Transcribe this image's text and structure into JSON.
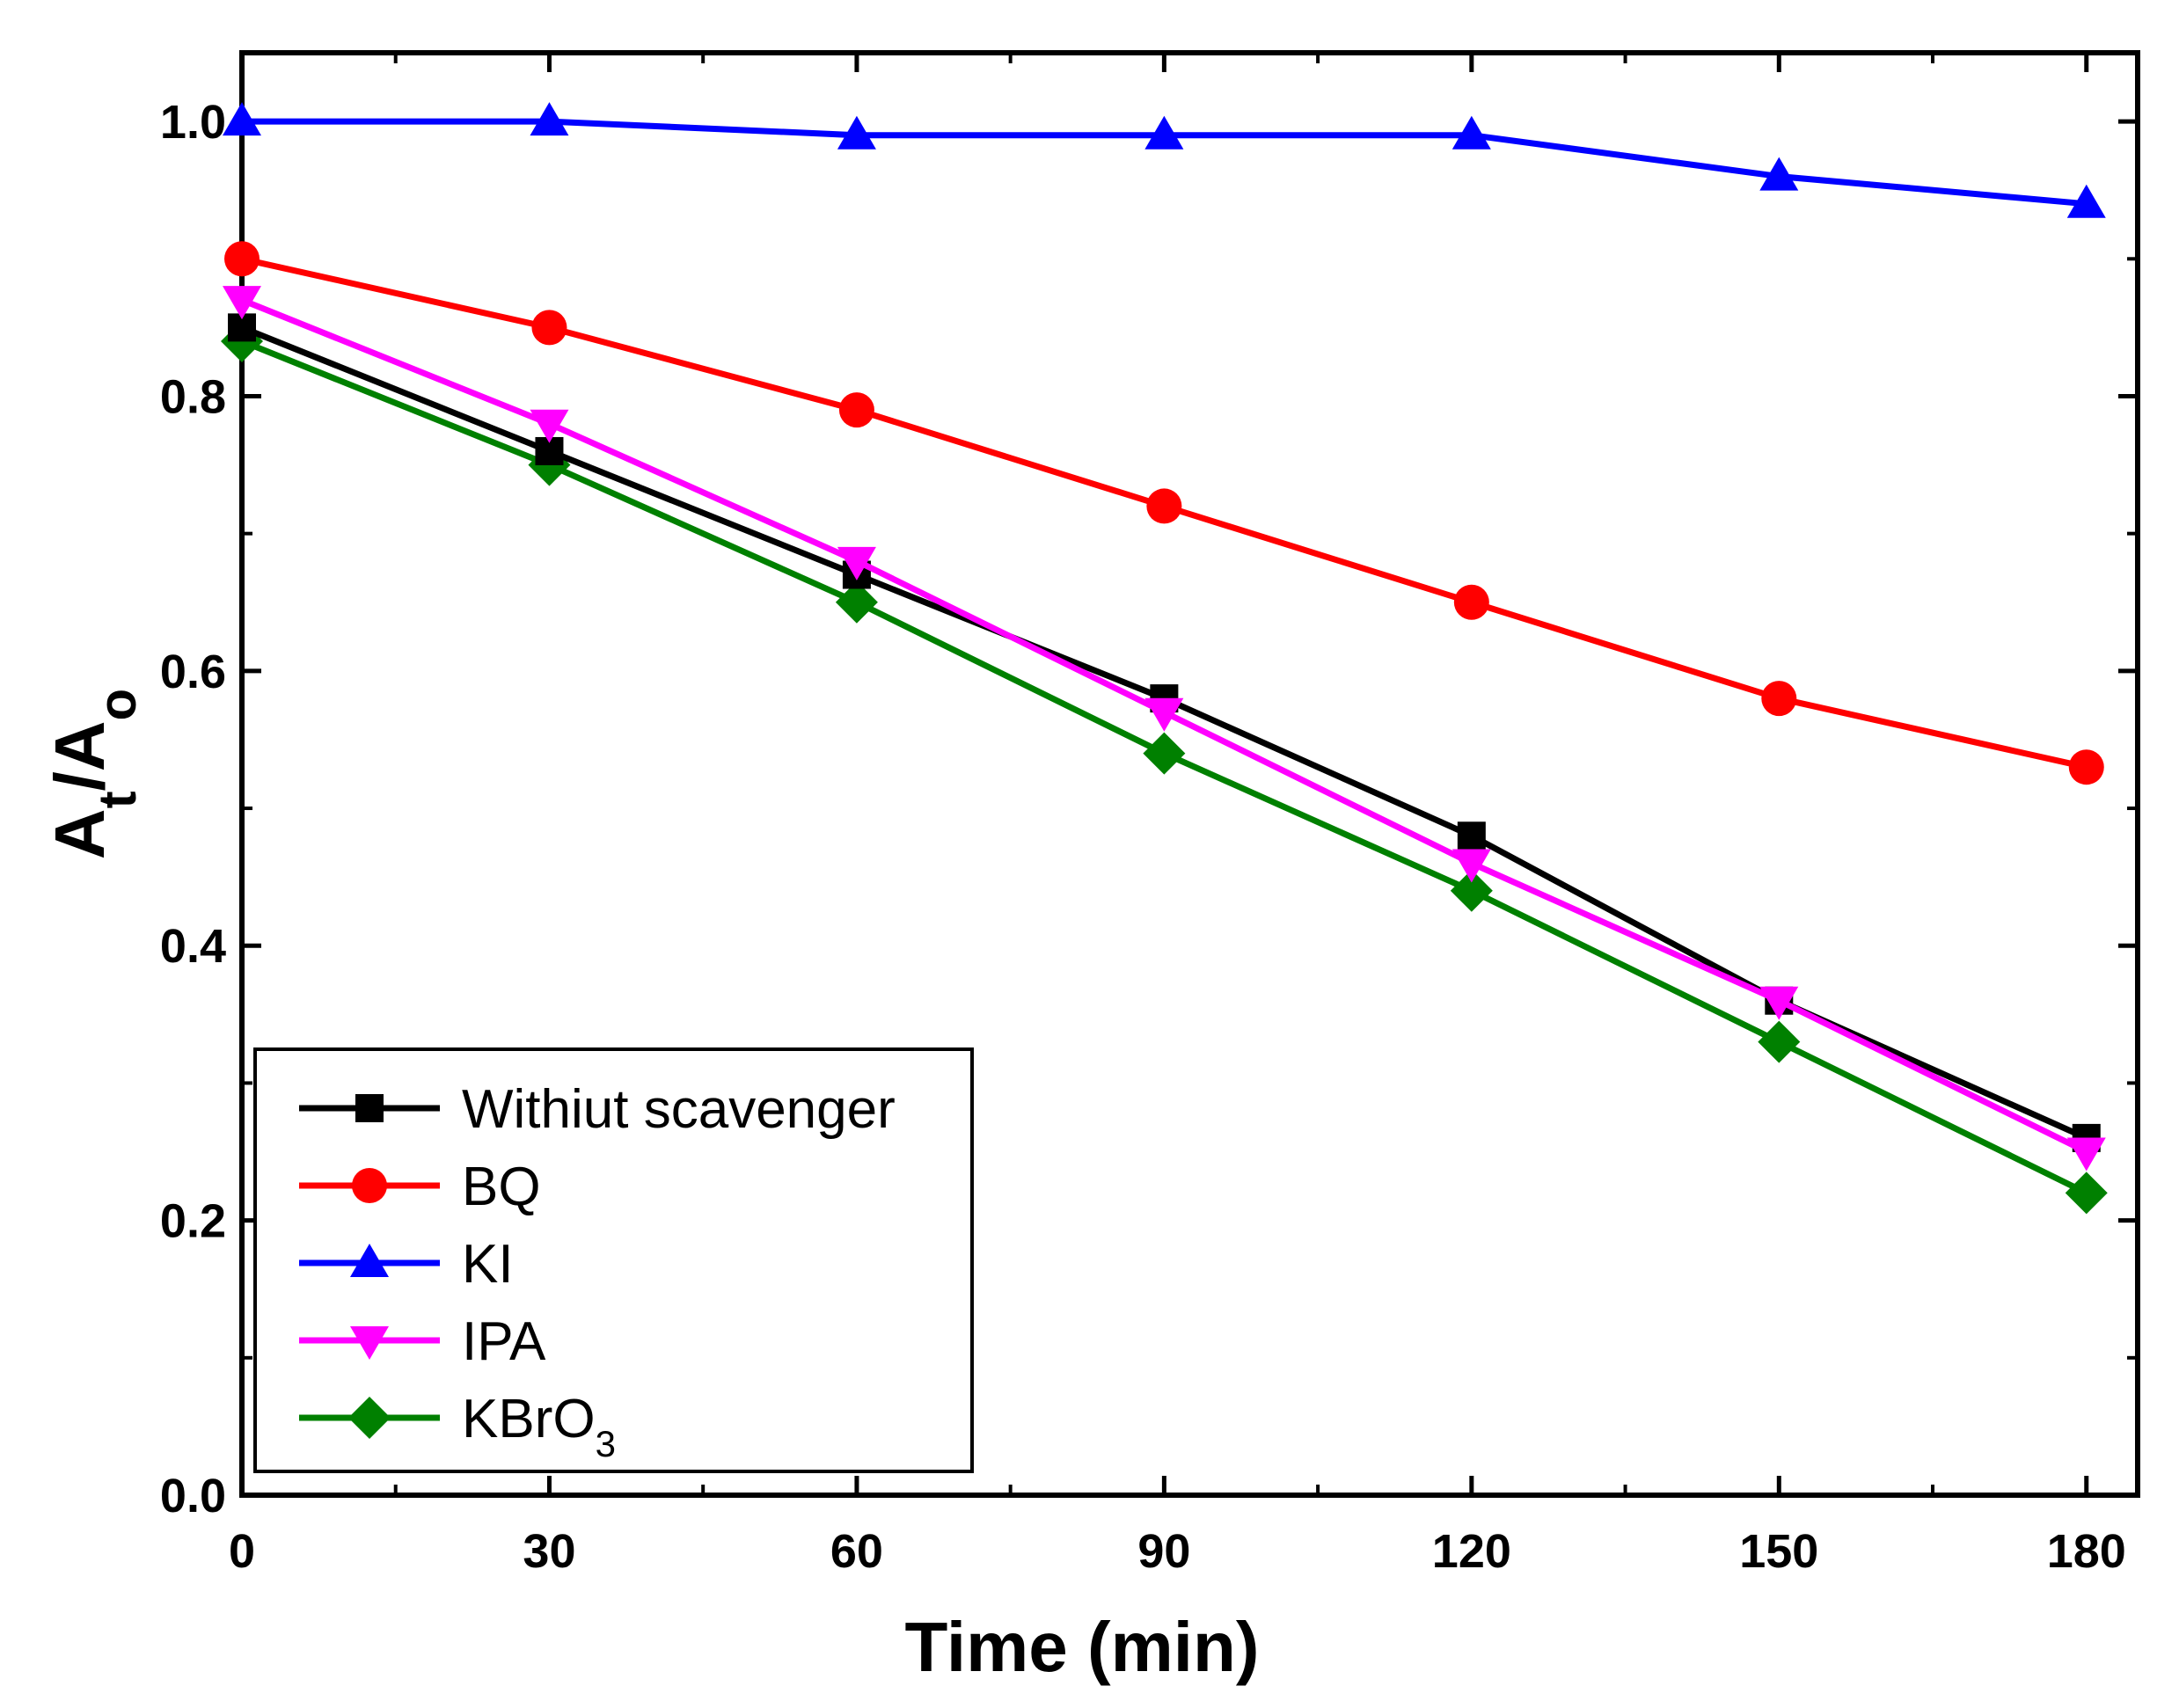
{
  "chart_data": {
    "type": "line",
    "xlabel": "Time (min)",
    "ylabel": {
      "main": "A",
      "sub1": "t",
      "slash": "/A",
      "sub2": "o"
    },
    "xlim": [
      0,
      185
    ],
    "ylim": [
      0,
      1.05
    ],
    "xticks": [
      0,
      30,
      60,
      90,
      120,
      150,
      180
    ],
    "xtick_labels": [
      "0",
      "30",
      "60",
      "90",
      "120",
      "150",
      "180"
    ],
    "yticks": [
      0.0,
      0.2,
      0.4,
      0.6,
      0.8,
      1.0
    ],
    "ytick_labels": [
      "0.0",
      "0.2",
      "0.4",
      "0.6",
      "0.8",
      "1.0"
    ],
    "grid": false,
    "legend_position": "bottom-left",
    "x": [
      0,
      30,
      60,
      90,
      120,
      150,
      180
    ],
    "series": [
      {
        "name": "Withiut scavenger",
        "name_sub": "",
        "color": "#000000",
        "marker": "square",
        "values": [
          0.85,
          0.76,
          0.67,
          0.58,
          0.48,
          0.36,
          0.26
        ]
      },
      {
        "name": "BQ",
        "name_sub": "",
        "color": "#ff0000",
        "marker": "circle",
        "values": [
          0.9,
          0.85,
          0.79,
          0.72,
          0.65,
          0.58,
          0.53
        ]
      },
      {
        "name": "KI",
        "name_sub": "",
        "color": "#0000ff",
        "marker": "triangle-up",
        "values": [
          1.0,
          1.0,
          0.99,
          0.99,
          0.99,
          0.96,
          0.94
        ]
      },
      {
        "name": "IPA",
        "name_sub": "",
        "color": "#ff00ff",
        "marker": "triangle-down",
        "values": [
          0.87,
          0.78,
          0.68,
          0.57,
          0.46,
          0.36,
          0.25
        ]
      },
      {
        "name": "KBrO",
        "name_sub": "3",
        "color": "#008000",
        "marker": "diamond",
        "values": [
          0.84,
          0.75,
          0.65,
          0.54,
          0.44,
          0.33,
          0.22
        ]
      }
    ]
  }
}
